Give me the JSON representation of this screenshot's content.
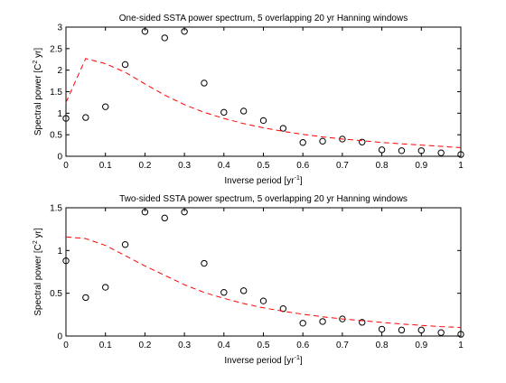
{
  "chart_data": [
    {
      "type": "scatter",
      "title": "One-sided SSTA power spectrum, 5 overlapping 20 yr Hanning windows",
      "xlabel": "Inverse period [yr",
      "xlabel_sup": "-1",
      "xlabel_end": "]",
      "ylabel": "Spectral power [C",
      "ylabel_sup": "2",
      "ylabel_end": " yr]",
      "xlim": [
        0,
        1
      ],
      "ylim": [
        0,
        3
      ],
      "xticks": [
        0,
        0.1,
        0.2,
        0.3,
        0.4,
        0.5,
        0.6,
        0.7,
        0.8,
        0.9,
        1
      ],
      "xtick_labels": [
        "0",
        "0.1",
        "0.2",
        "0.3",
        "0.4",
        "0.5",
        "0.6",
        "0.7",
        "0.8",
        "0.9",
        "1"
      ],
      "yticks": [
        0,
        0.5,
        1,
        1.5,
        2,
        2.5,
        3
      ],
      "ytick_labels": [
        "0",
        "0.5",
        "1",
        "1.5",
        "2",
        "2.5",
        "3"
      ],
      "grid": false,
      "series": [
        {
          "style": "open-circle markers",
          "color": "#000000",
          "x": [
            0,
            0.05,
            0.1,
            0.15,
            0.2,
            0.25,
            0.3,
            0.35,
            0.4,
            0.45,
            0.5,
            0.55,
            0.6,
            0.65,
            0.7,
            0.75,
            0.8,
            0.85,
            0.9,
            0.95,
            1
          ],
          "y": [
            0.88,
            0.9,
            1.15,
            2.13,
            2.9,
            2.75,
            2.9,
            1.7,
            1.02,
            1.05,
            0.83,
            0.65,
            0.32,
            0.35,
            0.4,
            0.33,
            0.15,
            0.13,
            0.13,
            0.08,
            0.04
          ]
        },
        {
          "style": "dashed line",
          "color": "#ff0000",
          "x": [
            0,
            0.05,
            0.1,
            0.15,
            0.2,
            0.25,
            0.3,
            0.35,
            0.4,
            0.45,
            0.5,
            0.55,
            0.6,
            0.65,
            0.7,
            0.75,
            0.8,
            0.85,
            0.9,
            0.95,
            1
          ],
          "y": [
            1.25,
            2.27,
            2.15,
            1.95,
            1.68,
            1.42,
            1.2,
            1.02,
            0.88,
            0.76,
            0.66,
            0.58,
            0.51,
            0.45,
            0.4,
            0.36,
            0.32,
            0.29,
            0.26,
            0.23,
            0.2
          ]
        }
      ]
    },
    {
      "type": "scatter",
      "title": "Two-sided SSTA power spectrum, 5 overlapping 20 yr Hanning windows",
      "xlabel": "Inverse period [yr",
      "xlabel_sup": "-1",
      "xlabel_end": "]",
      "ylabel": "Spectral power [C",
      "ylabel_sup": "2",
      "ylabel_end": " yr]",
      "xlim": [
        0,
        1
      ],
      "ylim": [
        0,
        1.5
      ],
      "xticks": [
        0,
        0.1,
        0.2,
        0.3,
        0.4,
        0.5,
        0.6,
        0.7,
        0.8,
        0.9,
        1
      ],
      "xtick_labels": [
        "0",
        "0.1",
        "0.2",
        "0.3",
        "0.4",
        "0.5",
        "0.6",
        "0.7",
        "0.8",
        "0.9",
        "1"
      ],
      "yticks": [
        0,
        0.5,
        1,
        1.5
      ],
      "ytick_labels": [
        "0",
        "0.5",
        "1",
        "1.5"
      ],
      "grid": false,
      "series": [
        {
          "style": "open-circle markers",
          "color": "#000000",
          "x": [
            0,
            0.05,
            0.1,
            0.15,
            0.2,
            0.25,
            0.3,
            0.35,
            0.4,
            0.45,
            0.5,
            0.55,
            0.6,
            0.65,
            0.7,
            0.75,
            0.8,
            0.85,
            0.9,
            0.95,
            1
          ],
          "y": [
            0.88,
            0.45,
            0.57,
            1.07,
            1.45,
            1.38,
            1.45,
            0.85,
            0.51,
            0.53,
            0.41,
            0.32,
            0.15,
            0.17,
            0.2,
            0.16,
            0.08,
            0.07,
            0.07,
            0.04,
            0.02
          ]
        },
        {
          "style": "dashed line",
          "color": "#ff0000",
          "x": [
            0,
            0.05,
            0.1,
            0.15,
            0.2,
            0.25,
            0.3,
            0.35,
            0.4,
            0.45,
            0.5,
            0.55,
            0.6,
            0.65,
            0.7,
            0.75,
            0.8,
            0.85,
            0.9,
            0.95,
            1
          ],
          "y": [
            1.16,
            1.14,
            1.06,
            0.94,
            0.82,
            0.71,
            0.6,
            0.51,
            0.44,
            0.38,
            0.33,
            0.29,
            0.255,
            0.225,
            0.2,
            0.18,
            0.16,
            0.14,
            0.125,
            0.11,
            0.1
          ]
        }
      ]
    }
  ]
}
